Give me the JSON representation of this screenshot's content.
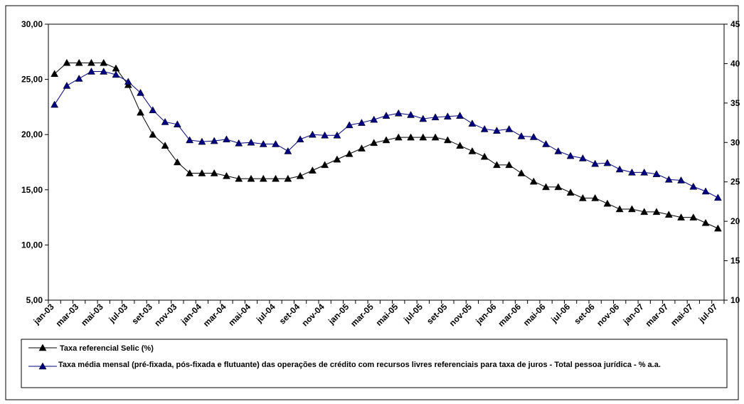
{
  "chart_data": {
    "type": "line",
    "categories": [
      "jan-03",
      null,
      "mar-03",
      null,
      "mai-03",
      null,
      "jul-03",
      null,
      "set-03",
      null,
      "nov-03",
      null,
      "jan-04",
      null,
      "mar-04",
      null,
      "mai-04",
      null,
      "jul-04",
      null,
      "set-04",
      null,
      "nov-04",
      null,
      "jan-05",
      null,
      "mar-05",
      null,
      "mai-05",
      null,
      "jul-05",
      null,
      "set-05",
      null,
      "nov-05",
      null,
      "jan-06",
      null,
      "mar-06",
      null,
      "mai-06",
      null,
      "jul-06",
      null,
      "set-06",
      null,
      "nov-06",
      null,
      "jan-07",
      null,
      "mar-07",
      null,
      "mai-07",
      null,
      "jul-07"
    ],
    "series": [
      {
        "name": "Taxa referencial Selic (%)",
        "color": "#000000",
        "values": [
          25.5,
          26.5,
          26.5,
          26.5,
          26.5,
          26.0,
          24.5,
          22.0,
          20.0,
          19.0,
          17.5,
          16.5,
          16.5,
          16.5,
          16.25,
          16.0,
          16.0,
          16.0,
          16.0,
          16.0,
          16.25,
          16.75,
          17.25,
          17.75,
          18.25,
          18.75,
          19.25,
          19.5,
          19.75,
          19.75,
          19.75,
          19.75,
          19.5,
          19.0,
          18.5,
          18.0,
          17.25,
          17.25,
          16.5,
          15.75,
          15.25,
          15.25,
          14.75,
          14.25,
          14.25,
          13.75,
          13.25,
          13.25,
          13.0,
          13.0,
          12.75,
          12.5,
          12.5,
          12.0,
          11.5
        ]
      },
      {
        "name": "Taxa média mensal (pré-fixada, pós-fixada e flutuante) das operações de crédito com recursos livres referenciais para taxa de juros - Total pessoa jurídica - % a.a.",
        "color": "#000080",
        "axis": "y2",
        "values": [
          34.8,
          37.2,
          38.1,
          39.0,
          39.0,
          38.6,
          37.7,
          36.3,
          34.1,
          32.6,
          32.3,
          30.3,
          30.1,
          30.2,
          30.4,
          29.9,
          30.0,
          29.8,
          29.8,
          28.9,
          30.4,
          31.0,
          30.9,
          30.9,
          32.2,
          32.5,
          32.9,
          33.4,
          33.7,
          33.5,
          33.0,
          33.2,
          33.3,
          33.4,
          32.4,
          31.7,
          31.5,
          31.7,
          30.8,
          30.7,
          29.8,
          28.9,
          28.3,
          28.0,
          27.3,
          27.4,
          26.6,
          26.2,
          26.2,
          26.0,
          25.3,
          25.2,
          24.4,
          23.8,
          23.0
        ]
      }
    ],
    "ylim": [
      5,
      30
    ],
    "yticks": [
      {
        "value": 5,
        "label": "5,00"
      },
      {
        "value": 10,
        "label": "10,00"
      },
      {
        "value": 15,
        "label": "15,00"
      },
      {
        "value": 20,
        "label": "20,00"
      },
      {
        "value": 25,
        "label": "25,00"
      },
      {
        "value": 30,
        "label": "30,00"
      }
    ],
    "y2lim": [
      10,
      45
    ],
    "y2ticks": [
      10,
      15,
      20,
      25,
      30,
      35,
      40,
      45
    ],
    "legend": "bottom",
    "marker": "triangle"
  }
}
